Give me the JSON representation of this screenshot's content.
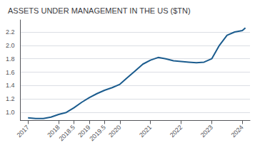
{
  "chart_data": {
    "type": "line",
    "title": "ASSETS UNDER MANAGEMENT IN THE US ($TN)",
    "x": [
      2017,
      2017.25,
      2017.5,
      2017.75,
      2018,
      2018.25,
      2018.5,
      2018.75,
      2019,
      2019.25,
      2019.5,
      2019.75,
      2020,
      2020.25,
      2020.5,
      2020.75,
      2021,
      2021.25,
      2021.5,
      2021.75,
      2022,
      2022.25,
      2022.5,
      2022.75,
      2023,
      2023.25,
      2023.5,
      2023.75,
      2024,
      2024.1
    ],
    "values": [
      0.92,
      0.91,
      0.91,
      0.93,
      0.97,
      1.0,
      1.07,
      1.15,
      1.22,
      1.28,
      1.33,
      1.37,
      1.42,
      1.52,
      1.62,
      1.72,
      1.78,
      1.82,
      1.8,
      1.77,
      1.76,
      1.75,
      1.74,
      1.75,
      1.8,
      2.0,
      2.15,
      2.2,
      2.22,
      2.26
    ],
    "color": "#1b5c8e",
    "xlim": [
      2016.75,
      2024.25
    ],
    "xticks": [
      2017,
      2018,
      2018.5,
      2019,
      2019.5,
      2020,
      2021,
      2022,
      2023,
      2024
    ],
    "ylim": [
      0.88,
      2.38
    ],
    "yticks": [
      {
        "value": 1.0,
        "label": "1.0"
      },
      {
        "value": 1.2,
        "label": "1.2"
      },
      {
        "value": 1.4,
        "label": "1.4"
      },
      {
        "value": 1.6,
        "label": "1.6"
      },
      {
        "value": 1.8,
        "label": "1.8"
      },
      {
        "value": 2.0,
        "label": "2.0"
      },
      {
        "value": 2.2,
        "label": "2.2"
      }
    ],
    "grid": true
  }
}
